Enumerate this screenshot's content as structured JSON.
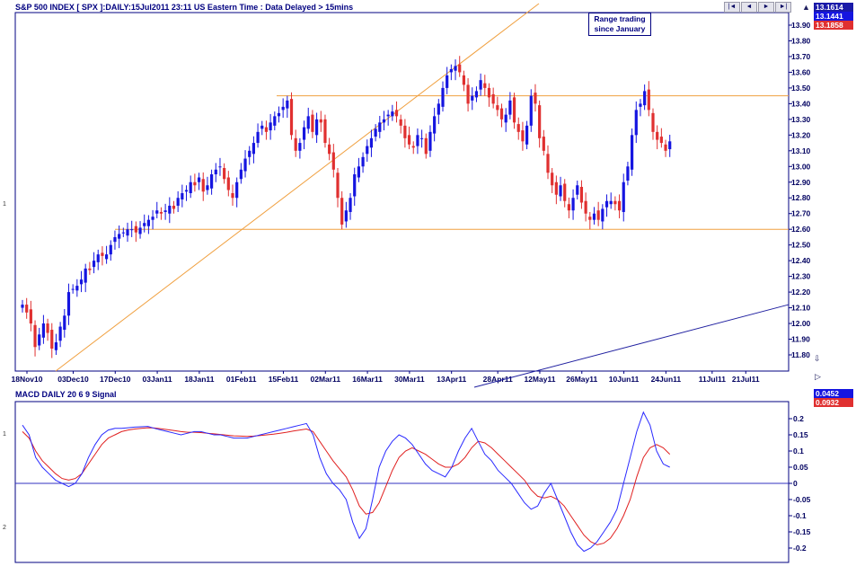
{
  "header": {
    "title": "S&P 500 INDEX [ SPX ]:DAILY:15Jul2011 23:11 US Eastern Time  : Data Delayed > 15mins",
    "macd_title": "MACD DAILY 20 6 9 Signal"
  },
  "toolbar": {
    "first": "|◄",
    "prev": "◄",
    "next": "►",
    "last": "►|"
  },
  "price_tags": {
    "close": "13.1614",
    "mid": "13.1441",
    "red": "13.1858"
  },
  "macd_tags": {
    "macd": "0.0452",
    "signal": "0.0932"
  },
  "left_marks": {
    "a": "1",
    "b": "1",
    "c": "2"
  },
  "annotation": {
    "line1": "Range trading",
    "line2": "since January"
  },
  "colors": {
    "up": "#1515e0",
    "down": "#e03030",
    "frame": "#000080",
    "trend": "#f0a040",
    "macd": "#2a2aff",
    "signal": "#e02020"
  },
  "chart_data": [
    {
      "type": "candlestick",
      "title": "S&P 500 INDEX [ SPX ]:DAILY:15Jul2011 23:11 US Eastern Time  : Data Delayed > 15mins",
      "ylim": [
        11.7,
        14.0
      ],
      "yticks": [
        "13.90",
        "13.80",
        "13.70",
        "13.60",
        "13.50",
        "13.40",
        "13.30",
        "13.20",
        "13.10",
        "13.00",
        "12.90",
        "12.80",
        "12.70",
        "12.60",
        "12.50",
        "12.40",
        "12.30",
        "12.20",
        "12.10",
        "12.00",
        "11.90",
        "11.80"
      ],
      "xticks": [
        {
          "label": "18Nov10",
          "i": 0
        },
        {
          "label": "03Dec10",
          "i": 11
        },
        {
          "label": "17Dec10",
          "i": 21
        },
        {
          "label": "03Jan11",
          "i": 31
        },
        {
          "label": "18Jan11",
          "i": 41
        },
        {
          "label": "01Feb11",
          "i": 51
        },
        {
          "label": "15Feb11",
          "i": 61
        },
        {
          "label": "02Mar11",
          "i": 71
        },
        {
          "label": "16Mar11",
          "i": 81
        },
        {
          "label": "30Mar11",
          "i": 91
        },
        {
          "label": "13Apr11",
          "i": 101
        },
        {
          "label": "28Apr11",
          "i": 112
        },
        {
          "label": "12May11",
          "i": 122
        },
        {
          "label": "26May11",
          "i": 132
        },
        {
          "label": "10Jun11",
          "i": 142
        },
        {
          "label": "24Jun11",
          "i": 152
        },
        {
          "label": "11Jul11",
          "i": 163
        },
        {
          "label": "21Jul11",
          "i": 171
        }
      ],
      "close": [
        12.12,
        12.07,
        12.0,
        11.85,
        11.93,
        12.0,
        11.94,
        11.84,
        11.88,
        11.98,
        12.05,
        12.2,
        12.22,
        12.24,
        12.28,
        12.35,
        12.34,
        12.4,
        12.44,
        12.43,
        12.44,
        12.5,
        12.55,
        12.57,
        12.58,
        12.6,
        12.6,
        12.58,
        12.61,
        12.64,
        12.66,
        12.68,
        12.72,
        12.7,
        12.72,
        12.75,
        12.73,
        12.8,
        12.83,
        12.85,
        12.9,
        12.88,
        12.93,
        12.84,
        12.88,
        12.95,
        12.98,
        13.0,
        12.92,
        12.85,
        12.8,
        12.9,
        12.98,
        13.05,
        13.1,
        13.15,
        13.22,
        13.26,
        13.22,
        13.28,
        13.32,
        13.34,
        13.38,
        13.42,
        13.2,
        13.1,
        13.15,
        13.25,
        13.32,
        13.22,
        13.3,
        13.28,
        13.15,
        13.08,
        12.98,
        12.8,
        12.63,
        12.72,
        12.8,
        12.95,
        13.0,
        13.06,
        13.13,
        13.18,
        13.24,
        13.28,
        13.3,
        13.33,
        13.35,
        13.32,
        13.26,
        13.18,
        13.14,
        13.12,
        13.2,
        13.18,
        13.08,
        13.22,
        13.32,
        13.4,
        13.5,
        13.58,
        13.62,
        13.64,
        13.6,
        13.52,
        13.4,
        13.45,
        13.48,
        13.55,
        13.5,
        13.44,
        13.4,
        13.36,
        13.3,
        13.33,
        13.42,
        13.28,
        13.22,
        13.16,
        13.26,
        13.45,
        13.4,
        13.18,
        13.1,
        12.96,
        12.88,
        12.82,
        12.88,
        12.78,
        12.72,
        12.8,
        12.88,
        12.77,
        12.7,
        12.66,
        12.7,
        12.66,
        12.73,
        12.78,
        12.78,
        12.76,
        12.72,
        12.9,
        13.0,
        13.2,
        13.36,
        13.4,
        13.48,
        13.36,
        13.22,
        13.17,
        13.15,
        13.1,
        13.16
      ],
      "xlabel": "",
      "ylabel": ""
    },
    {
      "type": "line",
      "title": "MACD DAILY 20 6 9 Signal",
      "ylim": [
        -0.24,
        0.25
      ],
      "yticks": [
        "0.2",
        "0.15",
        "0.1",
        "0.05",
        "0",
        "-0.05",
        "-0.1",
        "-0.15",
        "-0.2"
      ],
      "series": [
        {
          "values": [
            0.18,
            0.15,
            0.08,
            0.05,
            0.03,
            0.01,
            0.0,
            -0.01,
            0.0,
            0.03,
            0.08,
            0.12,
            0.15,
            0.165,
            0.17,
            0.17,
            0.172,
            0.174,
            0.175,
            0.176,
            0.17,
            0.165,
            0.16,
            0.155,
            0.15,
            0.155,
            0.16,
            0.16,
            0.155,
            0.15,
            0.15,
            0.145,
            0.14,
            0.14,
            0.14,
            0.145,
            0.15,
            0.155,
            0.16,
            0.165,
            0.17,
            0.175,
            0.18,
            0.185,
            0.15,
            0.08,
            0.03,
            0.0,
            -0.02,
            -0.05,
            -0.12,
            -0.17,
            -0.14,
            -0.05,
            0.05,
            0.1,
            0.13,
            0.15,
            0.14,
            0.12,
            0.09,
            0.06,
            0.04,
            0.03,
            0.02,
            0.05,
            0.1,
            0.14,
            0.17,
            0.13,
            0.09,
            0.07,
            0.04,
            0.02,
            0.0,
            -0.03,
            -0.06,
            -0.08,
            -0.07,
            -0.03,
            0.0,
            -0.05,
            -0.1,
            -0.15,
            -0.19,
            -0.21,
            -0.2,
            -0.18,
            -0.15,
            -0.12,
            -0.08,
            0.0,
            0.08,
            0.16,
            0.22,
            0.18,
            0.1,
            0.06,
            0.05
          ]
        },
        {
          "values": [
            0.16,
            0.14,
            0.1,
            0.07,
            0.05,
            0.03,
            0.015,
            0.01,
            0.015,
            0.03,
            0.06,
            0.09,
            0.12,
            0.14,
            0.15,
            0.16,
            0.165,
            0.168,
            0.17,
            0.172,
            0.171,
            0.169,
            0.166,
            0.163,
            0.16,
            0.158,
            0.158,
            0.157,
            0.155,
            0.153,
            0.151,
            0.149,
            0.147,
            0.146,
            0.145,
            0.146,
            0.148,
            0.15,
            0.152,
            0.155,
            0.158,
            0.162,
            0.165,
            0.168,
            0.16,
            0.13,
            0.1,
            0.07,
            0.045,
            0.02,
            -0.02,
            -0.07,
            -0.095,
            -0.09,
            -0.06,
            -0.01,
            0.04,
            0.08,
            0.1,
            0.11,
            0.1,
            0.09,
            0.075,
            0.06,
            0.05,
            0.05,
            0.06,
            0.08,
            0.11,
            0.13,
            0.125,
            0.11,
            0.09,
            0.07,
            0.05,
            0.03,
            0.01,
            -0.02,
            -0.04,
            -0.045,
            -0.04,
            -0.05,
            -0.07,
            -0.1,
            -0.13,
            -0.16,
            -0.18,
            -0.19,
            -0.185,
            -0.17,
            -0.14,
            -0.1,
            -0.05,
            0.02,
            0.08,
            0.11,
            0.12,
            0.11,
            0.09
          ]
        }
      ],
      "xlabel": "",
      "ylabel": ""
    }
  ]
}
